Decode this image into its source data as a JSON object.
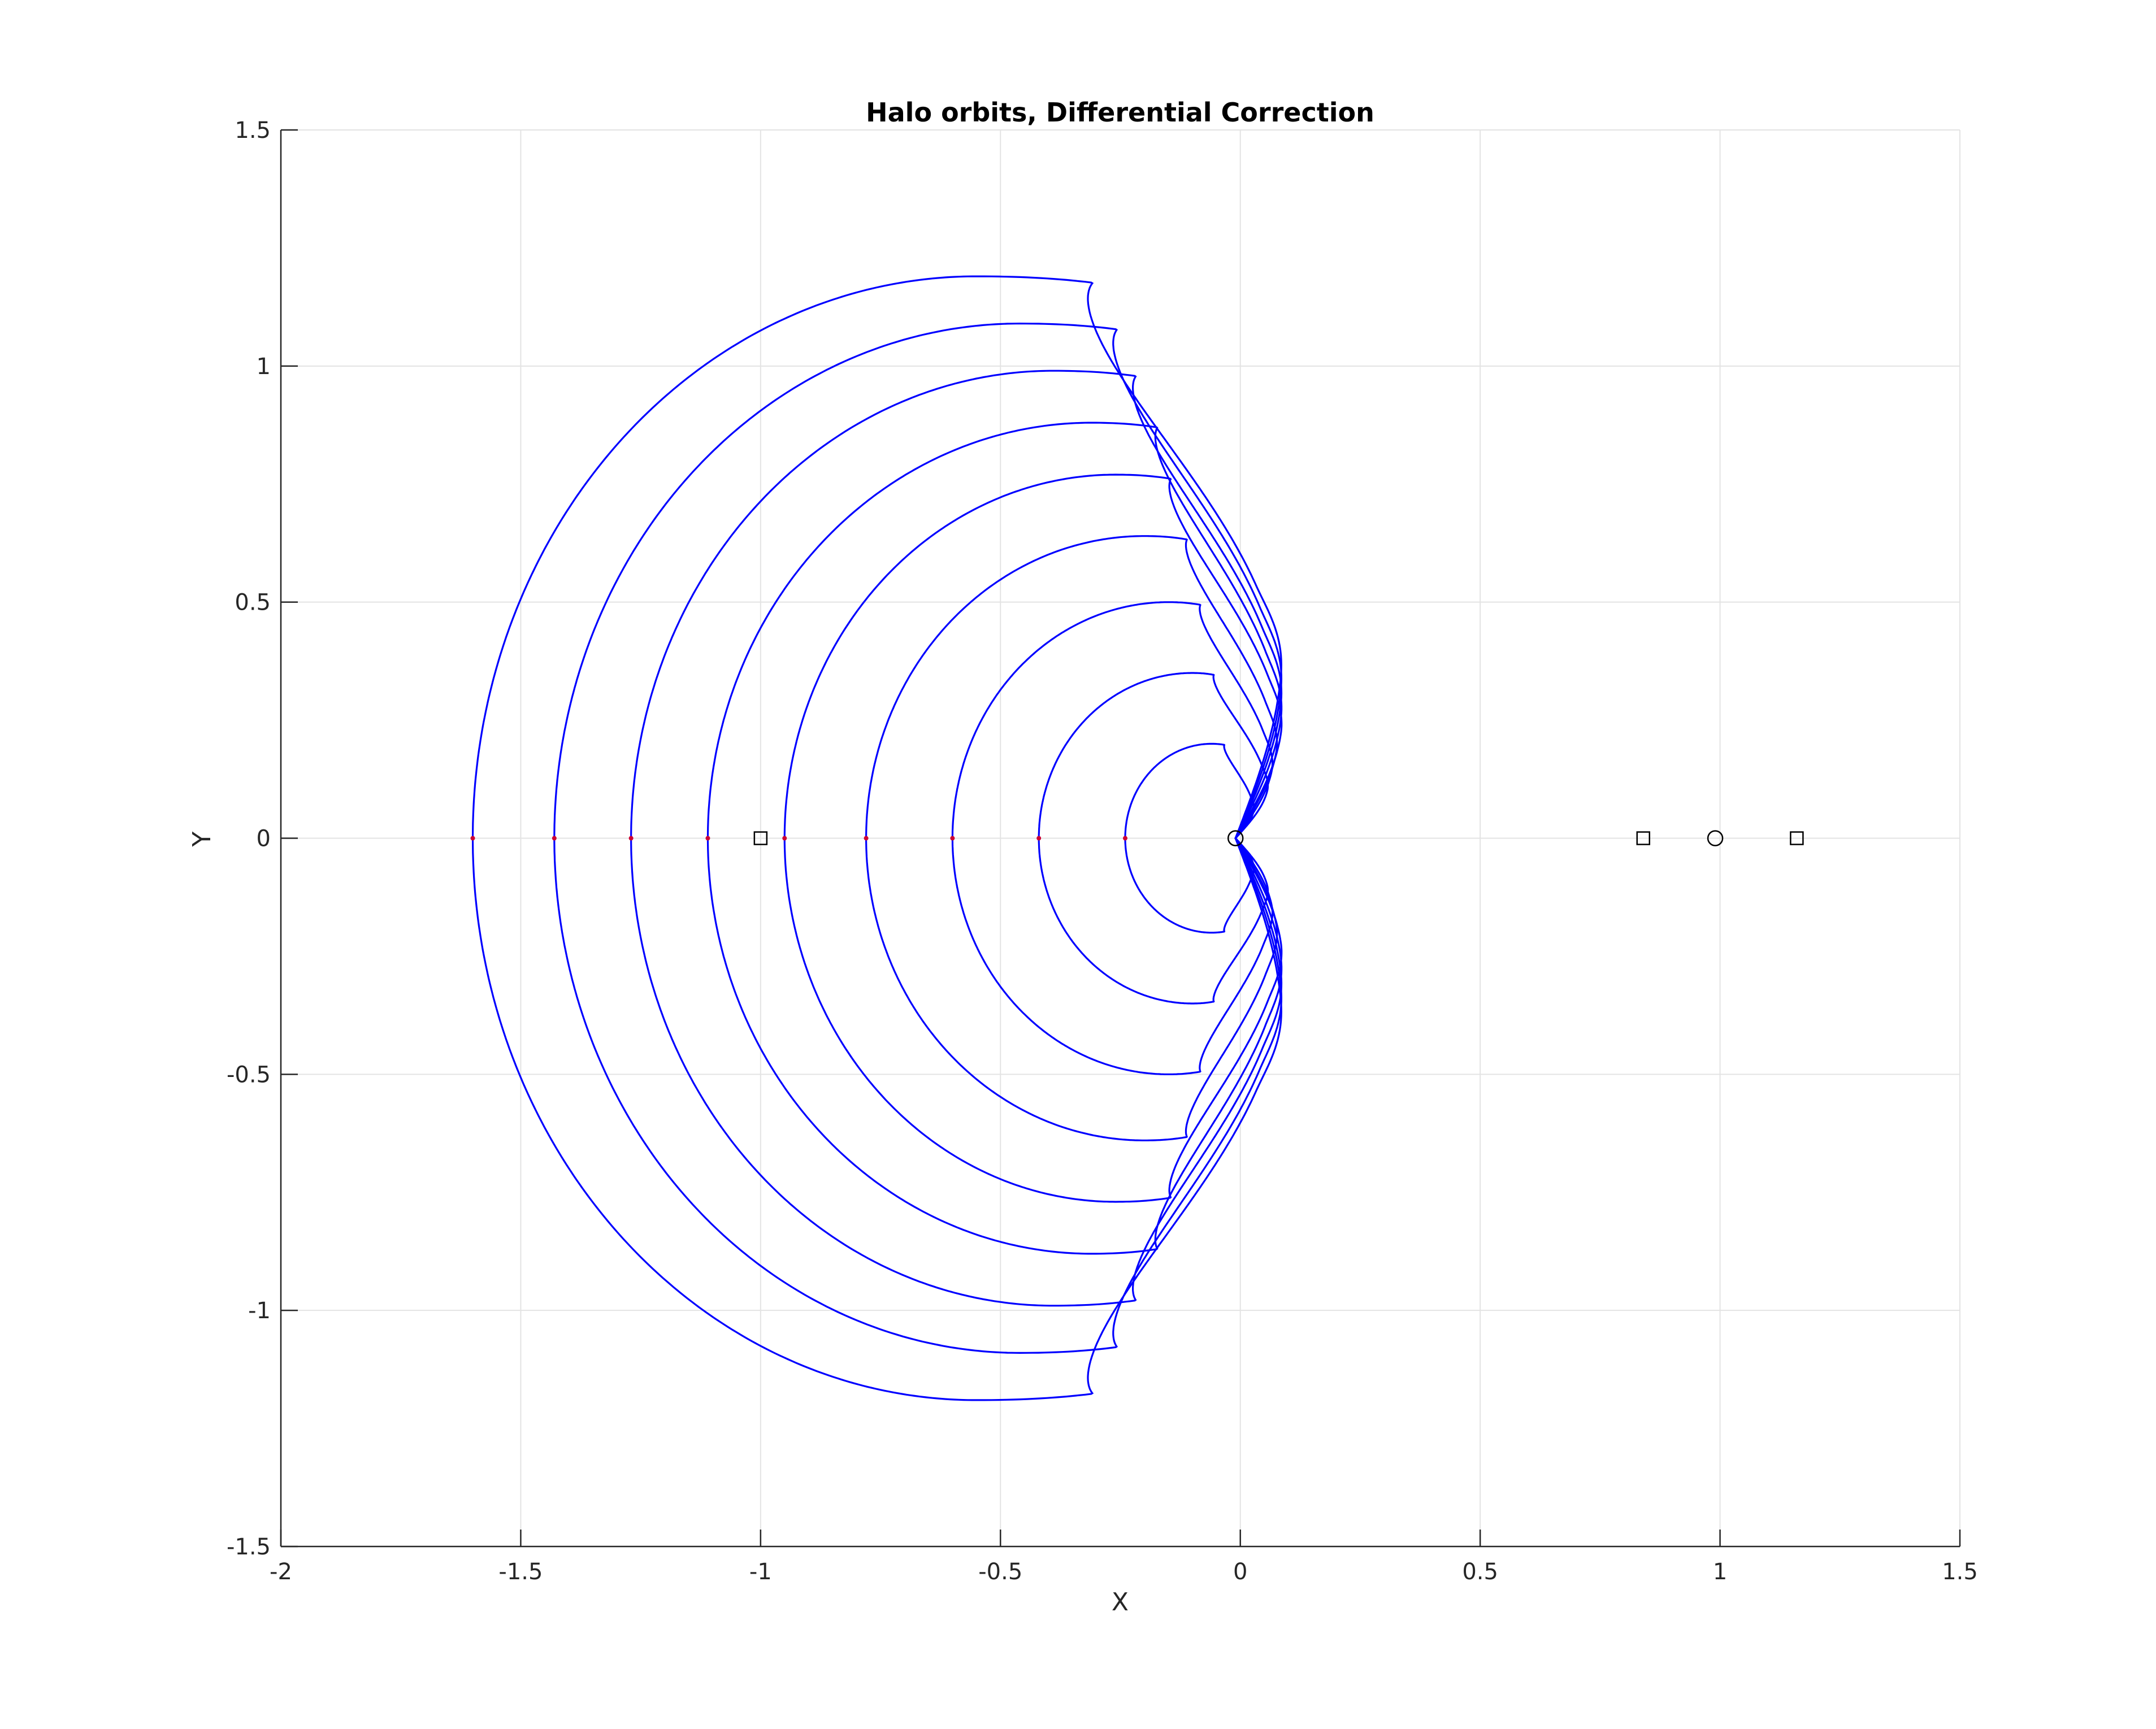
{
  "chart_data": {
    "type": "line",
    "title": "Halo orbits, Differential Correction",
    "xlabel": "X",
    "ylabel": "Y",
    "xlim": [
      -2,
      1.5
    ],
    "ylim": [
      -1.5,
      1.5
    ],
    "grid": true,
    "x_ticks": [
      -2,
      -1.5,
      -1,
      -0.5,
      0,
      0.5,
      1,
      1.5
    ],
    "x_tick_labels": [
      "-2",
      "-1.5",
      "-1",
      "-0.5",
      "0",
      "0.5",
      "1",
      "1.5"
    ],
    "y_ticks": [
      1.5,
      1,
      0.5,
      0,
      -0.5,
      -1,
      -1.5
    ],
    "y_tick_labels": [
      "1.5",
      "1",
      "0.5",
      "0",
      "-0.5",
      "-1",
      "-1.5"
    ],
    "series_color": "#0000ff",
    "start_point_color": "#cc0033",
    "marker_color": "#000000",
    "orbits": [
      {
        "x_min": -1.6,
        "x_max": -0.01,
        "y_max": 1.19,
        "x_at_y_max": -0.55,
        "x_right_max": 0.09
      },
      {
        "x_min": -1.43,
        "x_max": -0.01,
        "y_max": 1.09,
        "x_at_y_max": -0.46,
        "x_right_max": 0.09
      },
      {
        "x_min": -1.27,
        "x_max": -0.01,
        "y_max": 0.99,
        "x_at_y_max": -0.39,
        "x_right_max": 0.09
      },
      {
        "x_min": -1.11,
        "x_max": -0.01,
        "y_max": 0.88,
        "x_at_y_max": -0.31,
        "x_right_max": 0.09
      },
      {
        "x_min": -0.95,
        "x_max": -0.01,
        "y_max": 0.77,
        "x_at_y_max": -0.26,
        "x_right_max": 0.09
      },
      {
        "x_min": -0.78,
        "x_max": -0.01,
        "y_max": 0.64,
        "x_at_y_max": -0.2,
        "x_right_max": 0.08
      },
      {
        "x_min": -0.6,
        "x_max": -0.01,
        "y_max": 0.5,
        "x_at_y_max": -0.15,
        "x_right_max": 0.07
      },
      {
        "x_min": -0.42,
        "x_max": -0.01,
        "y_max": 0.35,
        "x_at_y_max": -0.1,
        "x_right_max": 0.06
      },
      {
        "x_min": -0.24,
        "x_max": -0.01,
        "y_max": 0.2,
        "x_at_y_max": -0.06,
        "x_right_max": 0.03
      }
    ],
    "start_points": [
      {
        "x": -1.6,
        "y": 0
      },
      {
        "x": -1.43,
        "y": 0
      },
      {
        "x": -1.27,
        "y": 0
      },
      {
        "x": -1.11,
        "y": 0
      },
      {
        "x": -0.95,
        "y": 0
      },
      {
        "x": -0.78,
        "y": 0
      },
      {
        "x": -0.6,
        "y": 0
      },
      {
        "x": -0.42,
        "y": 0
      },
      {
        "x": -0.24,
        "y": 0
      }
    ],
    "square_markers": [
      {
        "x": -1.0,
        "y": 0
      },
      {
        "x": 0.84,
        "y": 0
      },
      {
        "x": 1.16,
        "y": 0
      }
    ],
    "circle_markers": [
      {
        "x": -0.01,
        "y": 0
      },
      {
        "x": 0.99,
        "y": 0
      }
    ]
  }
}
